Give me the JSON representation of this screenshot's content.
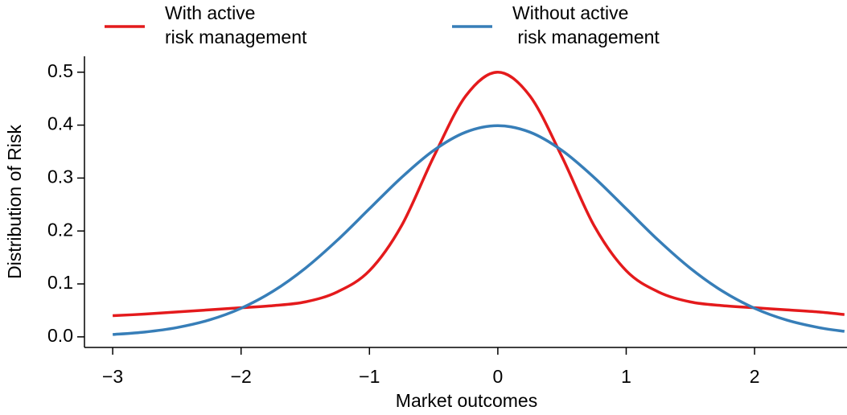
{
  "chart_data": {
    "type": "line",
    "x_label": "Market outcomes",
    "y_label": "Distribution of Risk",
    "x": [
      -3,
      -2.75,
      -2.5,
      -2.25,
      -2,
      -1.75,
      -1.5,
      -1.25,
      -1,
      -0.75,
      -0.5,
      -0.25,
      0,
      0.25,
      0.5,
      0.75,
      1,
      1.25,
      1.5,
      1.75,
      2,
      2.25,
      2.5,
      2.7
    ],
    "series": [
      {
        "name": "With active\nrisk management",
        "color": "#e41a1c",
        "values": [
          0.04,
          0.043,
          0.047,
          0.051,
          0.055,
          0.059,
          0.066,
          0.085,
          0.125,
          0.21,
          0.34,
          0.455,
          0.5,
          0.455,
          0.34,
          0.21,
          0.125,
          0.085,
          0.066,
          0.059,
          0.055,
          0.051,
          0.047,
          0.042
        ]
      },
      {
        "name": "Without active\n risk management",
        "color": "#377eb8",
        "values": [
          0.0044,
          0.0091,
          0.0175,
          0.0317,
          0.054,
          0.0863,
          0.1295,
          0.1826,
          0.242,
          0.3011,
          0.3521,
          0.3867,
          0.3989,
          0.3867,
          0.3521,
          0.3011,
          0.242,
          0.1826,
          0.1295,
          0.0863,
          0.054,
          0.0317,
          0.0175,
          0.0104
        ]
      }
    ],
    "xlim": [
      -3.22,
      2.72
    ],
    "ylim": [
      -0.02,
      0.53
    ],
    "xticks": [
      {
        "value": -3,
        "label": "−3"
      },
      {
        "value": -2,
        "label": "−2"
      },
      {
        "value": -1,
        "label": "−1"
      },
      0,
      1,
      2
    ],
    "yticks": [
      {
        "value": 0,
        "label": "0.0"
      },
      0.1,
      0.2,
      0.3,
      0.4,
      0.5
    ]
  }
}
